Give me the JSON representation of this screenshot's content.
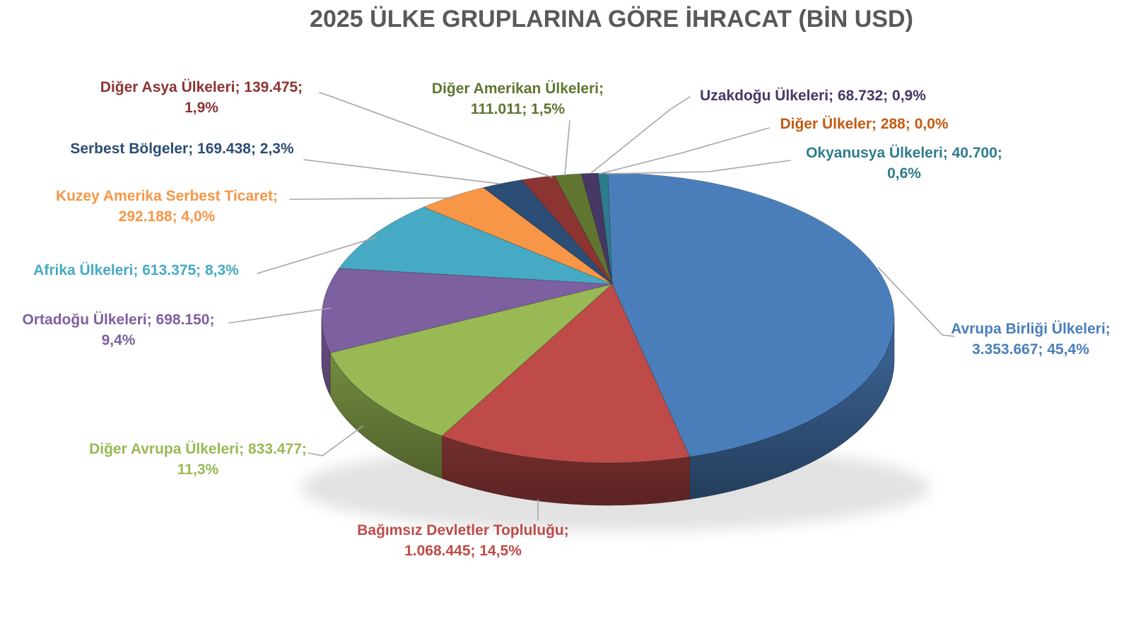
{
  "title": "2025 ÜLKE GRUPLARINA GÖRE İHRACAT (BİN USD)",
  "title_color": "#595959",
  "leader_line_color": "#A6A6A6",
  "chart_data": {
    "type": "pie",
    "style": "3d",
    "title": "2025 ÜLKE GRUPLARINA GÖRE İHRACAT (BİN USD)",
    "unit": "BİN USD",
    "legend_position": "none",
    "start_angle_deg": 0,
    "slices": [
      {
        "name": "Avrupa Birliği Ülkeleri",
        "value": 3353667,
        "value_display": "3.353.667",
        "pct": "45,4%",
        "color": "#4A7EBB",
        "label_line1": "Avrupa Birliği Ülkeleri;",
        "label_line2": "3.353.667; 45,4%"
      },
      {
        "name": "Bağımsız Devletler Topluluğu",
        "value": 1068445,
        "value_display": "1.068.445",
        "pct": "14,5%",
        "color": "#BE4B48",
        "label_line1": "Bağımsız Devletler Topluluğu;",
        "label_line2": "1.068.445; 14,5%"
      },
      {
        "name": "Diğer Avrupa Ülkeleri",
        "value": 833477,
        "value_display": "833.477",
        "pct": "11,3%",
        "color": "#98B954",
        "label_line1": "Diğer Avrupa Ülkeleri; 833.477;",
        "label_line2": "11,3%"
      },
      {
        "name": "Ortadoğu Ülkeleri",
        "value": 698150,
        "value_display": "698.150",
        "pct": "9,4%",
        "color": "#7D60A0",
        "label_line1": "Ortadoğu Ülkeleri; 698.150;",
        "label_line2": "9,4%"
      },
      {
        "name": "Afrika Ülkeleri",
        "value": 613375,
        "value_display": "613.375",
        "pct": "8,3%",
        "color": "#46AAC5",
        "label_line1": "Afrika Ülkeleri; 613.375; 8,3%",
        "label_line2": ""
      },
      {
        "name": "Kuzey Amerika Serbest Ticaret",
        "value": 292188,
        "value_display": "292.188",
        "pct": "4,0%",
        "color": "#F79646",
        "label_line1": "Kuzey Amerika Serbest Ticaret;",
        "label_line2": "292.188; 4,0%"
      },
      {
        "name": "Serbest Bölgeler",
        "value": 169438,
        "value_display": "169.438",
        "pct": "2,3%",
        "color": "#2C4D75",
        "label_line1": "Serbest Bölgeler; 169.438; 2,3%",
        "label_line2": ""
      },
      {
        "name": "Diğer Asya Ülkeleri",
        "value": 139475,
        "value_display": "139.475",
        "pct": "1,9%",
        "color": "#8B3432",
        "label_line1": "Diğer Asya Ülkeleri; 139.475;",
        "label_line2": "1,9%"
      },
      {
        "name": "Diğer Amerikan Ülkeleri",
        "value": 111011,
        "value_display": "111.011",
        "pct": "1,5%",
        "color": "#5F7530",
        "label_line1": "Diğer Amerikan Ülkeleri;",
        "label_line2": "111.011; 1,5%"
      },
      {
        "name": "Uzakdoğu Ülkeleri",
        "value": 68732,
        "value_display": "68.732",
        "pct": "0,9%",
        "color": "#463765",
        "label_line1": "Uzakdoğu Ülkeleri; 68.732; 0,9%",
        "label_line2": ""
      },
      {
        "name": "Diğer Ülkeler",
        "value": 288,
        "value_display": "288",
        "pct": "0,0%",
        "color": "#C55A11",
        "label_line1": "Diğer Ülkeler; 288; 0,0%",
        "label_line2": ""
      },
      {
        "name": "Okyanusya Ülkeleri",
        "value": 40700,
        "value_display": "40.700",
        "pct": "0,6%",
        "color": "#2D7C8D",
        "label_line1": "Okyanusya Ülkeleri; 40.700;",
        "label_line2": "0,6%"
      }
    ]
  }
}
